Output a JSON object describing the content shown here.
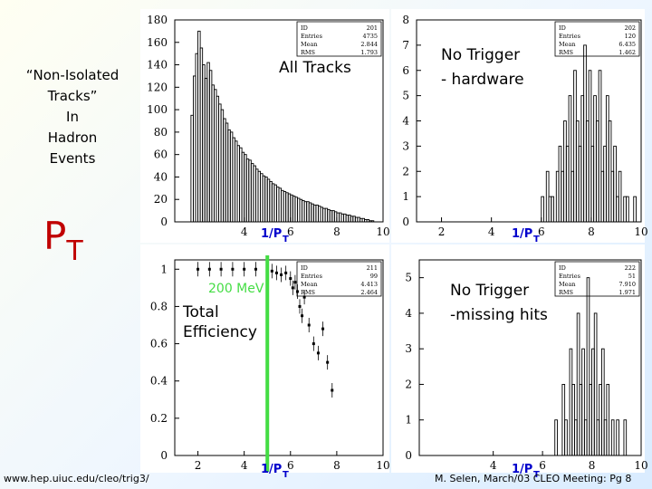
{
  "slide": {
    "side_title": [
      "“Non-Isolated",
      "Tracks”",
      "In",
      "Hadron",
      "Events"
    ],
    "pt_main": "P",
    "pt_sub": "T",
    "url": "www.hep.uiuc.edu/cleo/trig3/",
    "credit": "M. Selen, March/03 CLEO Meeting: Pg 8",
    "colors": {
      "title_red": "#c00000",
      "threshold_green": "#44dd44",
      "axis_label_blue": "#0000cc"
    }
  },
  "chart_data": [
    {
      "type": "histogram",
      "annotation": "All Tracks",
      "xlabel": "1/P",
      "xlabel_sub": "T",
      "xlim": [
        1,
        10
      ],
      "ylim": [
        0,
        180
      ],
      "xticks": [
        4,
        6,
        8,
        10
      ],
      "yticks": [
        0,
        20,
        40,
        60,
        80,
        100,
        120,
        140,
        160,
        180
      ],
      "stats": [
        [
          "ID",
          "201"
        ],
        [
          "Entries",
          "4735"
        ],
        [
          "Mean",
          "2.844"
        ],
        [
          "RMS",
          "1.793"
        ]
      ],
      "bin_width": 0.1,
      "x_start": 1.5,
      "values": [
        0,
        0,
        95,
        130,
        150,
        170,
        155,
        140,
        128,
        142,
        135,
        122,
        118,
        112,
        105,
        100,
        92,
        88,
        82,
        80,
        75,
        72,
        68,
        66,
        62,
        60,
        56,
        55,
        52,
        50,
        47,
        45,
        43,
        41,
        40,
        38,
        36,
        34,
        33,
        31,
        30,
        28,
        27,
        26,
        25,
        24,
        23,
        22,
        21,
        20,
        19,
        18,
        18,
        17,
        16,
        15,
        15,
        14,
        13,
        12,
        12,
        11,
        10,
        10,
        9,
        8,
        8,
        7,
        7,
        6,
        6,
        5,
        5,
        4,
        4,
        3,
        3,
        2,
        2,
        1,
        1,
        0,
        0,
        0,
        0
      ]
    },
    {
      "type": "histogram",
      "annotation": "No Trigger - hardware",
      "annotation_lines": [
        "No Trigger",
        "- hardware"
      ],
      "xlabel": "1/P",
      "xlabel_sub": "T",
      "xlim": [
        1,
        10
      ],
      "ylim": [
        0,
        8
      ],
      "xticks": [
        2,
        4,
        6,
        8,
        10
      ],
      "yticks": [
        0,
        1,
        2,
        3,
        4,
        5,
        6,
        7,
        8
      ],
      "stats": [
        [
          "ID",
          "202"
        ],
        [
          "Entries",
          "120"
        ],
        [
          "Mean",
          "6.435"
        ],
        [
          "RMS",
          "1.462"
        ]
      ],
      "bin_width": 0.1,
      "x_start": 6.0,
      "values": [
        1,
        0,
        2,
        1,
        1,
        0,
        2,
        3,
        2,
        4,
        3,
        5,
        2,
        6,
        4,
        3,
        5,
        7,
        4,
        6,
        3,
        5,
        4,
        6,
        2,
        3,
        5,
        4,
        2,
        3,
        1,
        2,
        0,
        1,
        1,
        0,
        0,
        1,
        0,
        0
      ]
    },
    {
      "type": "scatter",
      "annotation_threshold": "200 MeV",
      "annotation": "Total Efficiency",
      "annotation_lines": [
        "Total",
        "Efficiency"
      ],
      "xlabel": "1/P",
      "xlabel_sub": "T",
      "xlim": [
        1,
        10
      ],
      "ylim": [
        0,
        1.05
      ],
      "xticks": [
        2,
        4,
        6,
        8,
        10
      ],
      "yticks": [
        0,
        0.2,
        0.4,
        0.6,
        0.8,
        1
      ],
      "threshold_x": 5,
      "stats": [
        [
          "ID",
          "211"
        ],
        [
          "Entries",
          "99"
        ],
        [
          "Mean",
          "4.413"
        ],
        [
          "RMS",
          "2.464"
        ]
      ],
      "x": [
        2.0,
        2.5,
        3.0,
        3.5,
        4.0,
        4.5,
        5.0,
        5.2,
        5.4,
        5.6,
        5.8,
        6.0,
        6.1,
        6.2,
        6.3,
        6.4,
        6.5,
        6.6,
        6.8,
        7.0,
        7.2,
        7.4,
        7.6,
        7.8
      ],
      "y": [
        1.0,
        1.0,
        1.0,
        1.0,
        1.0,
        1.0,
        0.99,
        0.99,
        0.98,
        0.97,
        0.98,
        0.95,
        0.9,
        0.93,
        0.88,
        0.8,
        0.75,
        0.85,
        0.7,
        0.6,
        0.55,
        0.68,
        0.5,
        0.35
      ]
    },
    {
      "type": "histogram",
      "annotation": "No Trigger -missing hits",
      "annotation_lines": [
        "No Trigger",
        "-missing hits"
      ],
      "xlabel": "1/P",
      "xlabel_sub": "T",
      "xlim": [
        1,
        10
      ],
      "ylim": [
        0,
        5.5
      ],
      "xticks": [
        4,
        6,
        8,
        10
      ],
      "yticks": [
        0,
        1,
        2,
        3,
        4,
        5
      ],
      "stats": [
        [
          "ID",
          "222"
        ],
        [
          "Entries",
          "51"
        ],
        [
          "Mean",
          "7.910"
        ],
        [
          "RMS",
          "1.971"
        ]
      ],
      "bin_width": 0.1,
      "x_start": 6.5,
      "values": [
        1,
        0,
        0,
        2,
        1,
        0,
        3,
        2,
        1,
        4,
        2,
        3,
        1,
        5,
        2,
        3,
        4,
        1,
        2,
        3,
        1,
        2,
        0,
        1,
        0,
        1,
        0,
        0,
        1,
        0
      ]
    }
  ]
}
